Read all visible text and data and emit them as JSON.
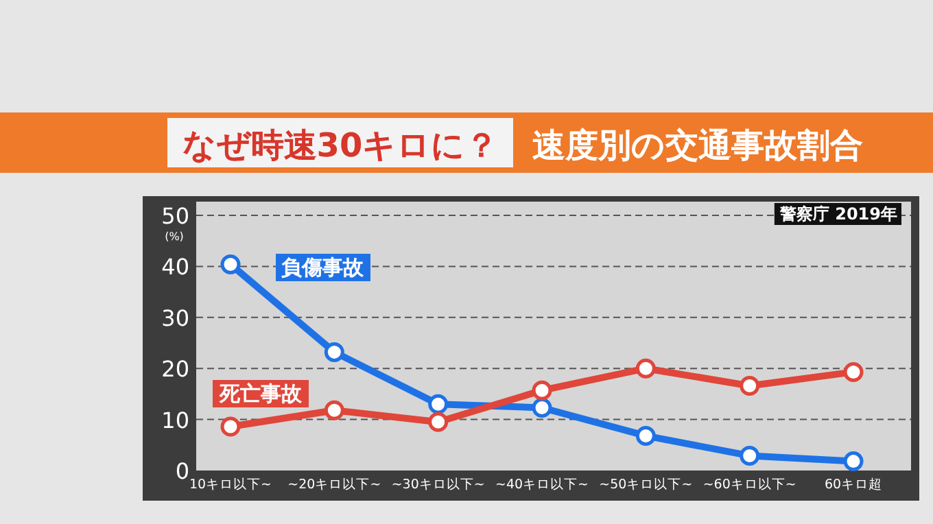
{
  "chart_data": {
    "type": "line",
    "title": "なぜ時速30キロに？",
    "subtitle": "速度別の交通事故割合",
    "ylabel": "(%)",
    "annotations": [
      "警察庁 2019年"
    ],
    "categories": [
      "10キロ以下~",
      "~20キロ以下~",
      "~30キロ以下~",
      "~40キロ以下~",
      "~50キロ以下~",
      "~60キロ以下~",
      "60キロ超"
    ],
    "series": [
      {
        "name": "負傷事故",
        "color": "#1f72e6",
        "values": [
          40.4,
          23.2,
          13.0,
          12.3,
          6.8,
          2.9,
          1.8
        ]
      },
      {
        "name": "死亡事故",
        "color": "#e0463a",
        "values": [
          8.6,
          11.8,
          9.5,
          15.7,
          20.0,
          16.6,
          19.3
        ]
      }
    ],
    "ylim": [
      0,
      50
    ],
    "yticks": [
      0,
      10,
      20,
      30,
      40,
      50
    ],
    "grid": "y",
    "marker": "circle",
    "line_style": "solid"
  }
}
